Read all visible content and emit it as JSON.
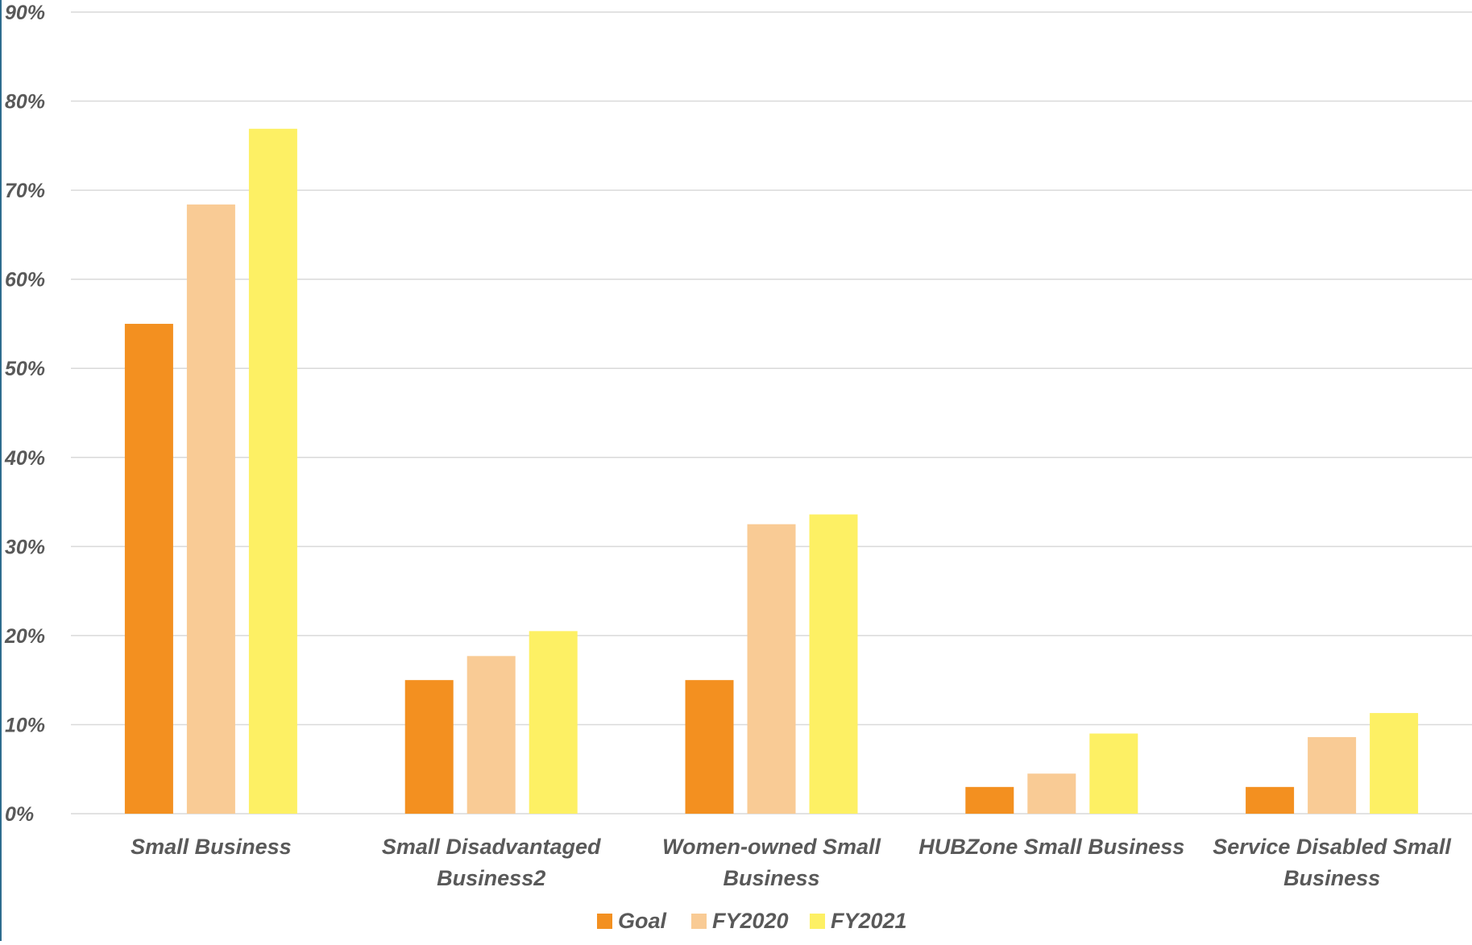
{
  "chart_data": {
    "type": "bar",
    "categories": [
      [
        "Small Business"
      ],
      [
        "Small Disadvantaged",
        "Business2"
      ],
      [
        "Women-owned Small",
        "Business"
      ],
      [
        "HUBZone Small Business"
      ],
      [
        "Service Disabled Small",
        "Business"
      ]
    ],
    "series": [
      {
        "name": "Goal",
        "color": "#f39020",
        "values": [
          55,
          15,
          15,
          3,
          3
        ]
      },
      {
        "name": "FY2020",
        "color": "#f9cb95",
        "values": [
          68.4,
          17.7,
          32.5,
          4.5,
          8.6
        ]
      },
      {
        "name": "FY2021",
        "color": "#fdf064",
        "values": [
          76.9,
          20.5,
          33.6,
          9.0,
          11.3
        ]
      }
    ],
    "y_ticks": [
      "0%",
      "10%",
      "20%",
      "30%",
      "40%",
      "50%",
      "60%",
      "70%",
      "80%",
      "90%"
    ],
    "ylim": [
      0,
      90
    ],
    "y_unit": "%",
    "grid": true,
    "legend_position": "bottom",
    "gridline_color": "#d9d9d9",
    "text_color": "#595959",
    "title": "",
    "xlabel": "",
    "ylabel": ""
  }
}
